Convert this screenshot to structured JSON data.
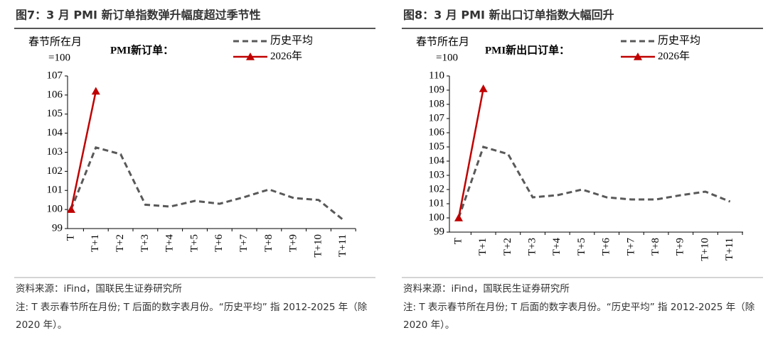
{
  "chart_data": [
    {
      "type": "line",
      "title": "图7：3 月 PMI 新订单指数弹升幅度超过季节性",
      "y_label_lines": [
        "春节所在月",
        "=100"
      ],
      "inner_label": "PMI新订单：",
      "categories": [
        "T",
        "T+1",
        "T+2",
        "T+3",
        "T+4",
        "T+5",
        "T+6",
        "T+7",
        "T+8",
        "T+9",
        "T+10",
        "T+11"
      ],
      "series": [
        {
          "name": "历史平均",
          "color": "#595959",
          "dash": true,
          "values": [
            100.0,
            103.25,
            102.9,
            100.25,
            100.15,
            100.45,
            100.3,
            100.65,
            101.05,
            100.6,
            100.5,
            99.45
          ]
        },
        {
          "name": "2026年",
          "color": "#c00000",
          "marker": "triangle",
          "values": [
            100.0,
            106.2,
            null,
            null,
            null,
            null,
            null,
            null,
            null,
            null,
            null,
            null
          ]
        }
      ],
      "ylim": [
        99,
        107
      ],
      "yticks": [
        99,
        100,
        101,
        102,
        103,
        104,
        105,
        106,
        107
      ],
      "source": "资料来源：iFind，国联民生证券研究所",
      "note": "注: T 表示春节所在月份; T 后面的数字表月份。“历史平均” 指 2012-2025 年（除 2020 年）。"
    },
    {
      "type": "line",
      "title": "图8：3 月 PMI 新出口订单指数大幅回升",
      "y_label_lines": [
        "春节所在月",
        "=100"
      ],
      "inner_label": "PMI新出口订单：",
      "categories": [
        "T",
        "T+1",
        "T+2",
        "T+3",
        "T+4",
        "T+5",
        "T+6",
        "T+7",
        "T+8",
        "T+9",
        "T+10",
        "T+11"
      ],
      "series": [
        {
          "name": "历史平均",
          "color": "#595959",
          "dash": true,
          "values": [
            100.0,
            105.0,
            104.5,
            101.45,
            101.6,
            102.0,
            101.45,
            101.3,
            101.3,
            101.6,
            101.85,
            101.15
          ]
        },
        {
          "name": "2026年",
          "color": "#c00000",
          "marker": "triangle",
          "values": [
            100.0,
            109.1,
            null,
            null,
            null,
            null,
            null,
            null,
            null,
            null,
            null,
            null
          ]
        }
      ],
      "ylim": [
        99,
        110
      ],
      "yticks": [
        99,
        100,
        101,
        102,
        103,
        104,
        105,
        106,
        107,
        108,
        109,
        110
      ],
      "source": "资料来源：iFind，国联民生证券研究所",
      "note": "注: T 表示春节所在月份; T 后面的数字表月份。“历史平均” 指 2012-2025 年（除 2020 年）。"
    }
  ]
}
